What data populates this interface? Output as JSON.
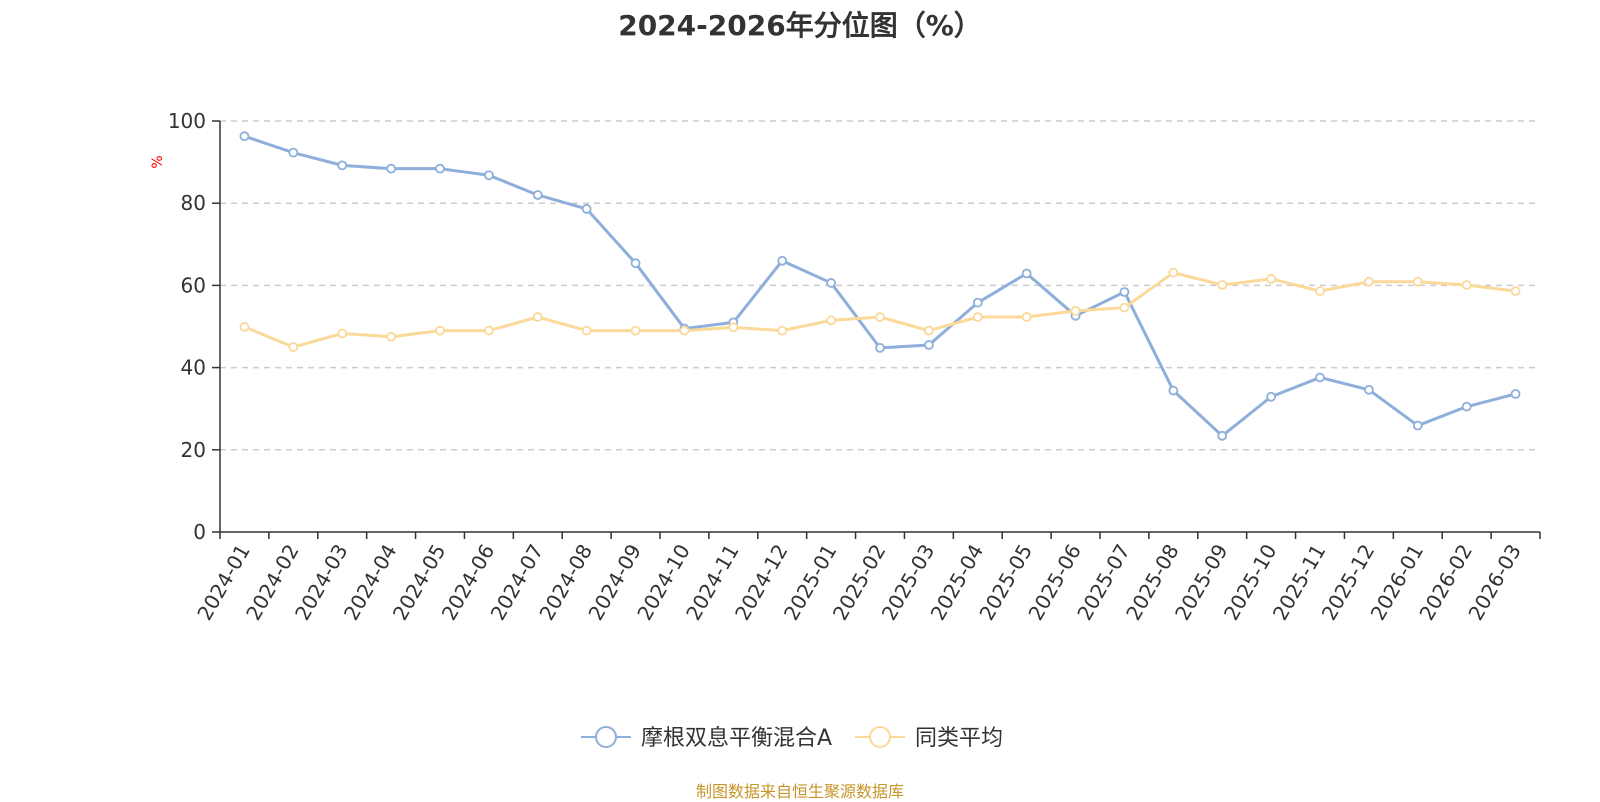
{
  "chart_data": {
    "type": "line",
    "title": "2024-2026年分位图（%）",
    "ylabel": "%",
    "ylim": [
      0,
      100
    ],
    "yticks": [
      0,
      20,
      40,
      60,
      80,
      100
    ],
    "grid": true,
    "legend_position": "bottom",
    "categories": [
      "2024-01",
      "2024-02",
      "2024-03",
      "2024-04",
      "2024-05",
      "2024-06",
      "2024-07",
      "2024-08",
      "2024-09",
      "2024-10",
      "2024-11",
      "2024-12",
      "2025-01",
      "2025-02",
      "2025-03",
      "2025-04",
      "2025-05",
      "2025-06",
      "2025-07",
      "2025-08",
      "2025-09",
      "2025-10",
      "2025-11",
      "2025-12",
      "2026-01",
      "2026-02",
      "2026-03"
    ],
    "series": [
      {
        "name": "摩根双息平衡混合A",
        "color": "#8eaedb",
        "values": [
          96.3,
          92.3,
          89.2,
          88.4,
          88.4,
          86.8,
          82.0,
          78.6,
          65.4,
          49.5,
          51.0,
          66.0,
          60.6,
          44.8,
          45.5,
          55.8,
          62.9,
          52.6,
          58.4,
          34.4,
          23.4,
          32.9,
          37.6,
          34.6,
          25.9,
          30.5,
          33.6
        ]
      },
      {
        "name": "同类平均",
        "color": "#fad999",
        "values": [
          49.9,
          45.0,
          48.3,
          47.5,
          49.0,
          49.0,
          52.3,
          49.0,
          49.0,
          49.0,
          49.8,
          49.0,
          51.5,
          52.3,
          49.0,
          52.3,
          52.3,
          53.8,
          54.6,
          63.1,
          60.1,
          61.6,
          58.6,
          60.9,
          60.9,
          60.1,
          58.6
        ]
      }
    ]
  },
  "footer": {
    "source": "制图数据来自恒生聚源数据库"
  }
}
